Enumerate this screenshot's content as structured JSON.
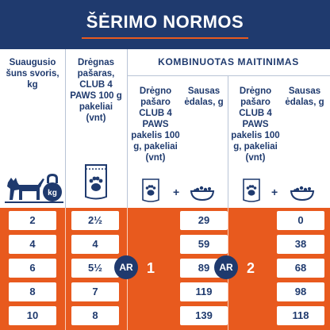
{
  "title": "ŠĖRIMO NORMOS",
  "columns": {
    "weight": "Suaugusio šuns svoris, kg",
    "wet_only": "Drėgnas pašaras, CLUB 4 PAWS 100 g pakeliai (vnt)",
    "combined_title": "KOMBINUOTAS MAITINIMAS",
    "combo1_wet": "Drėgno pašaro CLUB 4 PAWS pakelis 100 g, pakeliai (vnt)",
    "combo1_dry": "Sausas ėdalas, g",
    "combo2_wet": "Drėgno pašaro CLUB 4 PAWS pakelis 100 g, pakeliai (vnt)",
    "combo2_dry": "Sausas ėdalas, g"
  },
  "icons": {
    "dog_weight": "dog-kettlebell-icon",
    "kettlebell_label": "kg",
    "pouch": "wet-food-pouch-icon",
    "bowl": "dry-food-bowl-icon",
    "plus": "+"
  },
  "rows": [
    {
      "weight": "2",
      "wet": "2½",
      "dry1": "29",
      "dry2": "0"
    },
    {
      "weight": "4",
      "wet": "4",
      "dry1": "59",
      "dry2": "38"
    },
    {
      "weight": "6",
      "wet": "5½",
      "dry1": "89",
      "dry2": "68"
    },
    {
      "weight": "8",
      "wet": "7",
      "dry1": "119",
      "dry2": "98"
    },
    {
      "weight": "10",
      "wet": "8",
      "dry1": "139",
      "dry2": "118"
    }
  ],
  "connectors": {
    "or_label": "AR",
    "option1": "1",
    "option2": "2"
  },
  "colors": {
    "navy": "#1f3a6e",
    "orange": "#e85a1e",
    "white": "#ffffff"
  }
}
